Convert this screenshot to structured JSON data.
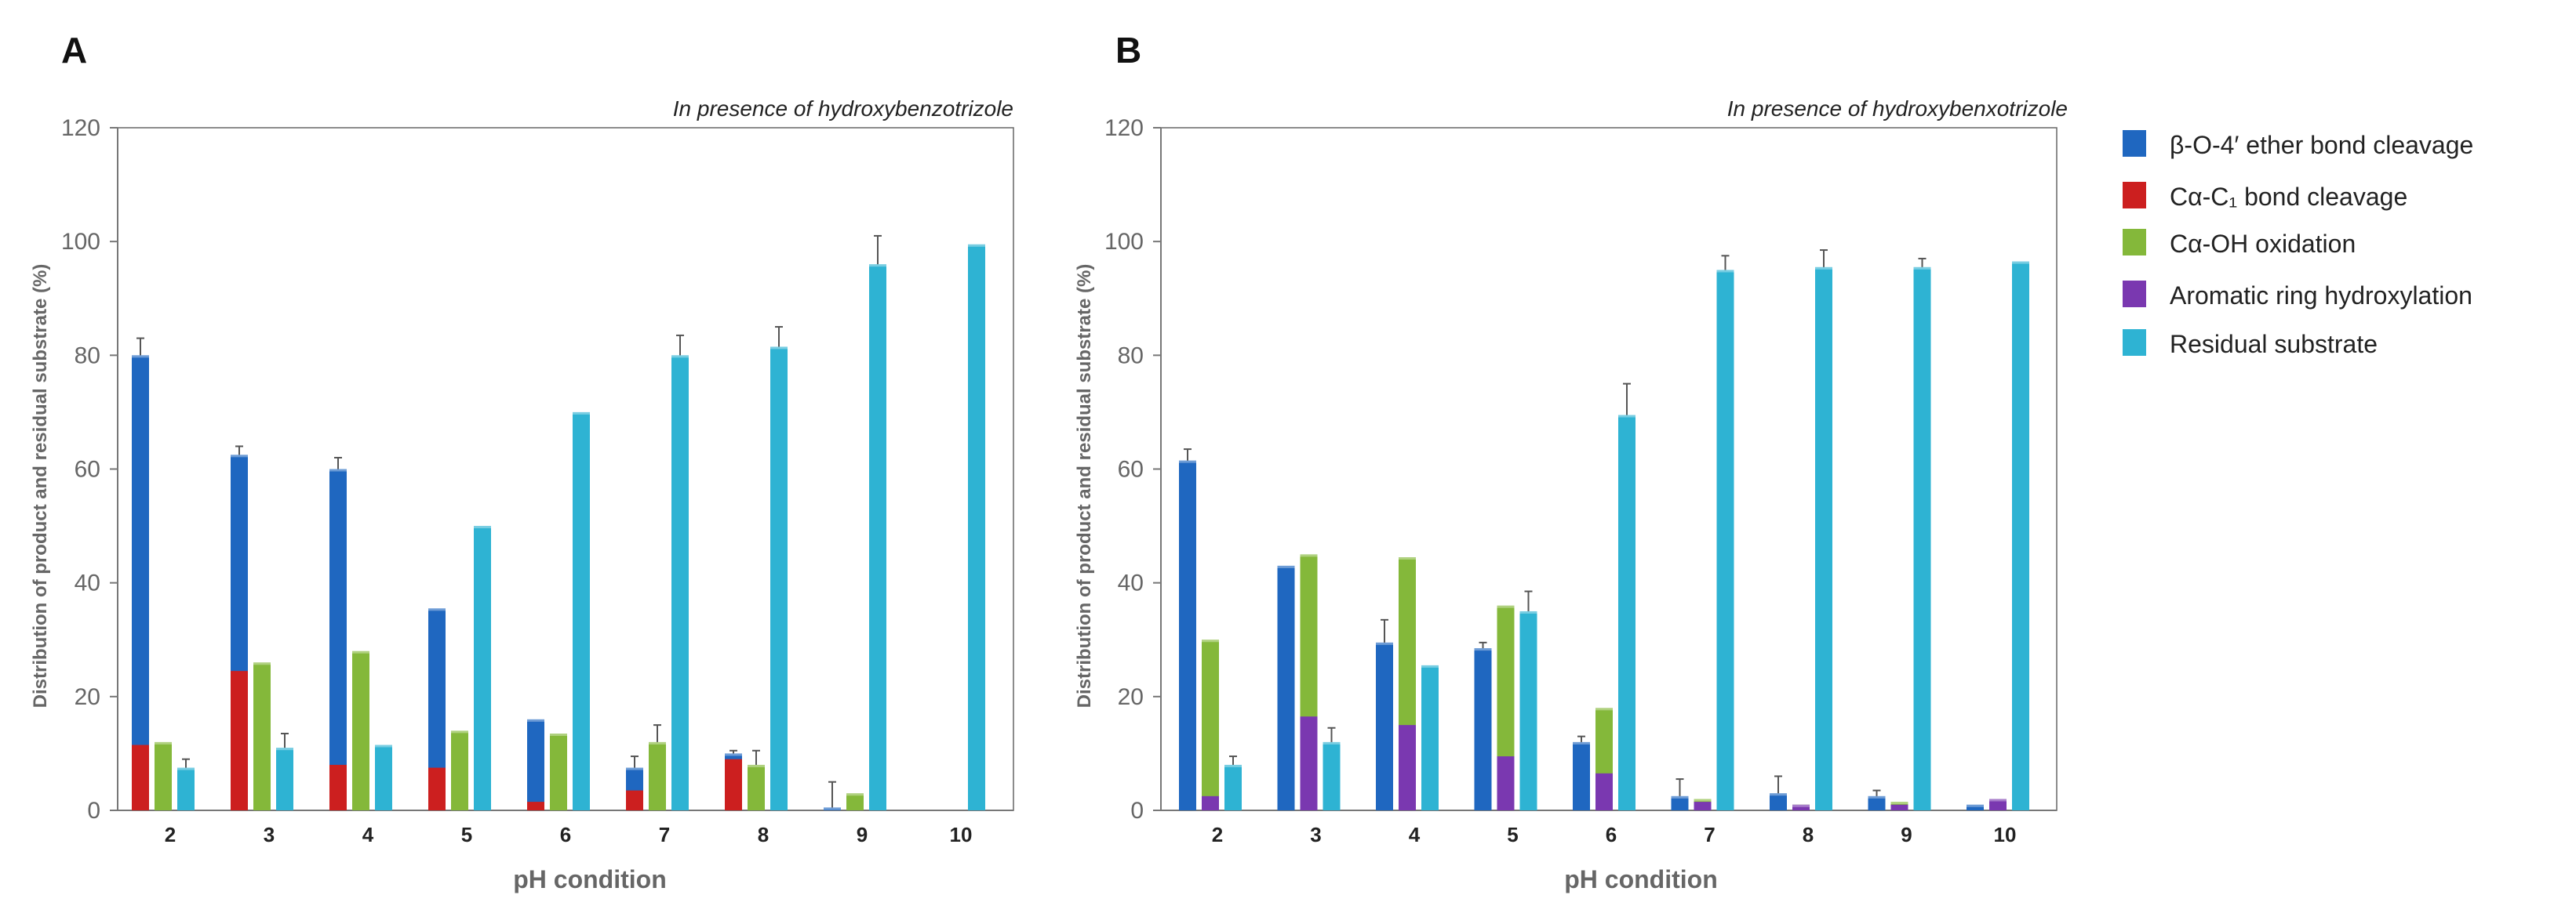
{
  "colors": {
    "beta": "#1f67c0",
    "calpha": "#cc1f1f",
    "oxid": "#84b83a",
    "arom": "#7a38b0",
    "resid": "#2eb3d3"
  },
  "legend": [
    {
      "key": "beta",
      "label": "β-O-4′ ether bond cleavage"
    },
    {
      "key": "calpha",
      "label": "Cα-C₁ bond cleavage"
    },
    {
      "key": "oxid",
      "label": "Cα-OH oxidation"
    },
    {
      "key": "arom",
      "label": "Aromatic ring hydroxylation"
    },
    {
      "key": "resid",
      "label": "Residual substrate"
    }
  ],
  "chart_data": [
    {
      "panel": "A",
      "type": "bar",
      "subtitle": "In presence of hydroxybenzotrizole",
      "xlabel": "pH condition",
      "ylabel": "Distribution of product and residual substrate (%)",
      "ylim": [
        0,
        120
      ],
      "yticks": [
        0,
        20,
        40,
        60,
        80,
        100,
        120
      ],
      "categories": [
        "2",
        "3",
        "4",
        "5",
        "6",
        "7",
        "8",
        "9",
        "10"
      ],
      "groups": [
        {
          "key": "beta",
          "stacked_with": "calpha",
          "total": [
            80,
            62.5,
            60,
            35.5,
            16,
            7.5,
            10,
            0.5,
            0
          ],
          "sub": [
            11.5,
            24.5,
            8,
            7.5,
            1.5,
            3.5,
            9,
            0,
            0
          ],
          "err": [
            3,
            1.5,
            2,
            0,
            0,
            2,
            0.5,
            4.5,
            0
          ]
        },
        {
          "key": "oxid",
          "stacked_with": null,
          "total": [
            12,
            26,
            28,
            14,
            13.5,
            12,
            8,
            3,
            0
          ],
          "sub": null,
          "err": [
            0,
            0,
            0,
            0,
            0,
            3,
            2.5,
            0,
            0
          ]
        },
        {
          "key": "resid",
          "stacked_with": null,
          "total": [
            7.5,
            11,
            11.5,
            50,
            70,
            80,
            81.5,
            96,
            99.5
          ],
          "sub": null,
          "err": [
            1.5,
            2.5,
            0,
            0,
            0,
            3.5,
            3.5,
            5,
            0
          ]
        }
      ]
    },
    {
      "panel": "B",
      "type": "bar",
      "subtitle": "In presence of hydroxybenxotrizole",
      "xlabel": "pH condition",
      "ylabel": "Distribution of product and residual substrate (%)",
      "ylim": [
        0,
        120
      ],
      "yticks": [
        0,
        20,
        40,
        60,
        80,
        100,
        120
      ],
      "categories": [
        "2",
        "3",
        "4",
        "5",
        "6",
        "7",
        "8",
        "9",
        "10"
      ],
      "groups": [
        {
          "key": "beta",
          "stacked_with": null,
          "total": [
            61.5,
            43,
            29.5,
            28.5,
            12,
            2.5,
            3,
            2.5,
            1
          ],
          "sub": null,
          "err": [
            2,
            0,
            4,
            1,
            1,
            3,
            3,
            1,
            0
          ]
        },
        {
          "key": "oxid",
          "stacked_with": "arom",
          "total": [
            30,
            45,
            44.5,
            36,
            18,
            2,
            1,
            1.5,
            2
          ],
          "sub": [
            2.5,
            16.5,
            15,
            9.5,
            6.5,
            1.5,
            1,
            1,
            2
          ],
          "err": [
            0,
            0,
            0,
            0,
            0,
            0,
            0,
            0,
            0
          ]
        },
        {
          "key": "resid",
          "stacked_with": null,
          "total": [
            8,
            12,
            25.5,
            35,
            69.5,
            95,
            95.5,
            95.5,
            96.5
          ],
          "sub": null,
          "err": [
            1.5,
            2.5,
            0,
            3.5,
            5.5,
            2.5,
            3,
            1.5,
            0
          ]
        }
      ]
    }
  ]
}
